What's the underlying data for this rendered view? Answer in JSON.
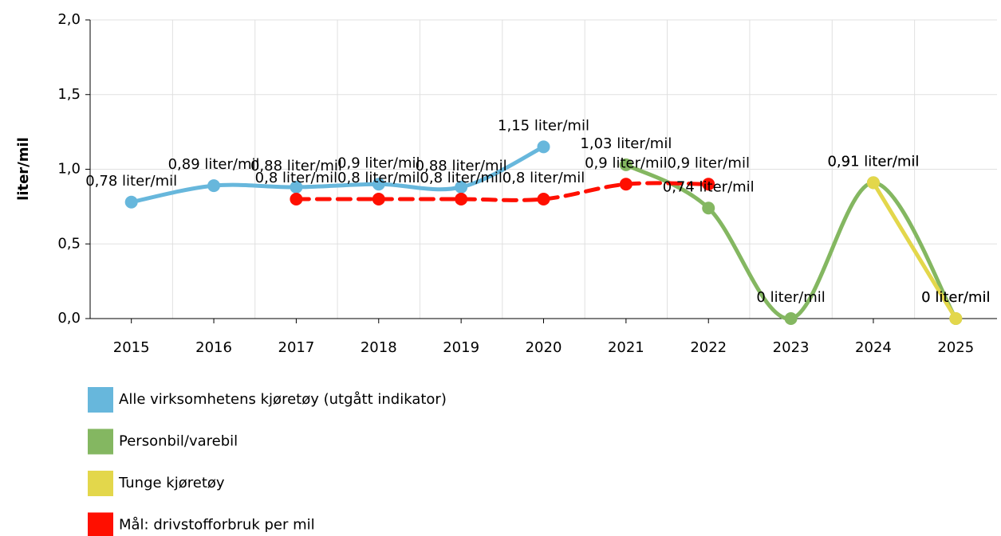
{
  "chart_data": {
    "type": "line",
    "y_label": "liter/mil",
    "categories": [
      "2015",
      "2016",
      "2017",
      "2018",
      "2019",
      "2020",
      "2021",
      "2022",
      "2023",
      "2024",
      "2025"
    ],
    "series": [
      {
        "name": "Alle virksomhetens kjøretøy (utgått indikator)",
        "color": "#67b7dc",
        "dashed": false,
        "values": [
          0.78,
          0.89,
          0.88,
          0.9,
          0.88,
          1.15,
          null,
          null,
          null,
          null,
          null
        ],
        "value_labels": [
          "0,78 liter/mil",
          "0,89 liter/mil",
          "0,88 liter/mil",
          "0,9 liter/mil",
          "0,88 liter/mil",
          "1,15 liter/mil",
          null,
          null,
          null,
          null,
          null
        ]
      },
      {
        "name": "Personbil/varebil",
        "color": "#84b761",
        "dashed": false,
        "values": [
          null,
          null,
          null,
          null,
          null,
          null,
          1.03,
          0.74,
          0,
          0.91,
          0
        ],
        "value_labels": [
          null,
          null,
          null,
          null,
          null,
          null,
          "1,03 liter/mil",
          "0,74 liter/mil",
          "0 liter/mil",
          "0,91 liter/mil",
          "0 liter/mil"
        ]
      },
      {
        "name": "Tunge kjøretøy",
        "color": "#e3d74b",
        "dashed": false,
        "values": [
          null,
          null,
          null,
          null,
          null,
          null,
          null,
          null,
          null,
          0.91,
          0
        ],
        "value_labels": [
          null,
          null,
          null,
          null,
          null,
          null,
          null,
          null,
          null,
          "0,91 liter/mil",
          "0 liter/mil"
        ]
      },
      {
        "name": "Mål: drivstofforbruk per mil",
        "color": "#ff0f00",
        "dashed": true,
        "values": [
          null,
          null,
          0.8,
          0.8,
          0.8,
          0.8,
          0.9,
          0.9,
          null,
          null,
          null
        ],
        "value_labels": [
          null,
          null,
          "0,8 liter/mil",
          "0,8 liter/mil",
          "0,8 liter/mil",
          "0,8 liter/mil",
          "0,9 liter/mil",
          "0,9 liter/mil",
          null,
          null,
          null
        ]
      }
    ],
    "ylim": [
      0,
      2
    ],
    "yticks": [
      {
        "value": 0,
        "label": "0,0"
      },
      {
        "value": 0.5,
        "label": "0,5"
      },
      {
        "value": 1,
        "label": "1,0"
      },
      {
        "value": 1.5,
        "label": "1,5"
      },
      {
        "value": 2,
        "label": "2,0"
      }
    ],
    "grid": true
  }
}
